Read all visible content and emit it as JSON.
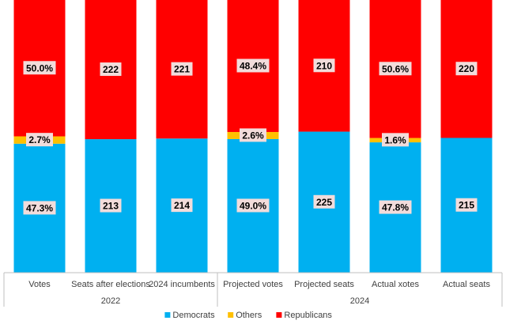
{
  "chart_data": {
    "type": "bar",
    "stacked": true,
    "normalized": true,
    "categories": [
      "Votes",
      "Seats after elections",
      "2024 incumbents",
      "Projected votes",
      "Projected seats",
      "Actual xotes",
      "Actual seats"
    ],
    "groups": [
      {
        "label": "2022",
        "categories": [
          "Votes",
          "Seats after elections",
          "2024 incumbents"
        ]
      },
      {
        "label": "2024",
        "categories": [
          "Projected votes",
          "Projected seats",
          "Actual xotes",
          "Actual seats"
        ]
      }
    ],
    "series": [
      {
        "name": "Democrats",
        "color": "#00b0f0",
        "values": [
          47.3,
          213,
          214,
          49.0,
          225,
          47.8,
          215
        ],
        "labels": [
          "47.3%",
          "213",
          "214",
          "49.0%",
          "225",
          "47.8%",
          "215"
        ]
      },
      {
        "name": "Others",
        "color": "#ffc000",
        "values": [
          2.7,
          0,
          0,
          2.6,
          0,
          1.6,
          0
        ],
        "labels": [
          "2.7%",
          "",
          "",
          "2.6%",
          "",
          "1.6%",
          ""
        ]
      },
      {
        "name": "Republicans",
        "color": "#ff0000",
        "values": [
          50.0,
          222,
          221,
          48.4,
          210,
          50.6,
          220
        ],
        "labels": [
          "50.0%",
          "222",
          "221",
          "48.4%",
          "210",
          "50.6%",
          "220"
        ]
      }
    ],
    "legend_position": "bottom",
    "grid": false
  }
}
